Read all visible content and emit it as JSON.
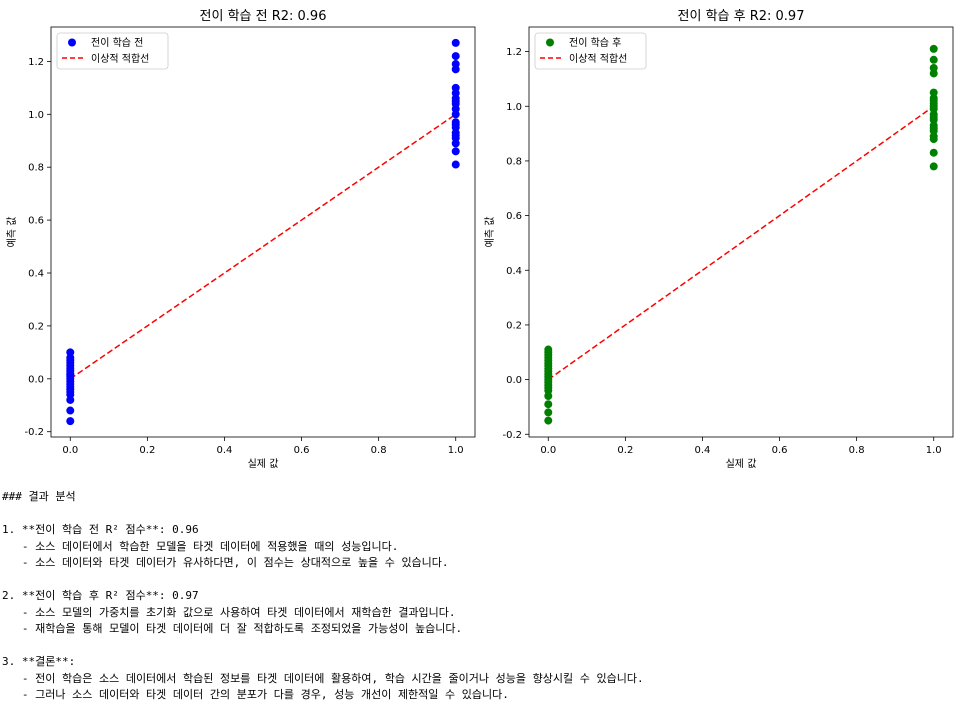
{
  "chart_data": [
    {
      "type": "scatter",
      "title": "전이 학습 전 R2: 0.96",
      "xlabel": "실제 값",
      "ylabel": "예측 값",
      "xlim": [
        -0.05,
        1.05
      ],
      "ylim": [
        -0.22,
        1.33
      ],
      "xticks": [
        0.0,
        0.2,
        0.4,
        0.6,
        0.8,
        1.0
      ],
      "xtick_labels": [
        "0.0",
        "0.2",
        "0.4",
        "0.6",
        "0.8",
        "1.0"
      ],
      "yticks": [
        -0.2,
        0.0,
        0.2,
        0.4,
        0.6,
        0.8,
        1.0,
        1.2
      ],
      "ytick_labels": [
        "-0.2",
        "0.0",
        "0.2",
        "0.4",
        "0.6",
        "0.8",
        "1.0",
        "1.2"
      ],
      "legend": {
        "position": "upper-left",
        "entries": [
          "전이 학습 전",
          "이상적 적합선"
        ]
      },
      "series": [
        {
          "name": "전이 학습 전",
          "kind": "scatter",
          "color": "#0000ff",
          "x": [
            0,
            0,
            0,
            0,
            0,
            0,
            0,
            0,
            0,
            0,
            0,
            0,
            0,
            0,
            0,
            0,
            0,
            0,
            0,
            0,
            1,
            1,
            1,
            1,
            1,
            1,
            1,
            1,
            1,
            1,
            1,
            1,
            1,
            1,
            1,
            1,
            1,
            1,
            1,
            1
          ],
          "y": [
            0.1,
            0.08,
            0.06,
            0.05,
            0.04,
            0.03,
            0.02,
            0.01,
            0.0,
            -0.01,
            -0.02,
            -0.03,
            -0.04,
            -0.06,
            -0.08,
            -0.12,
            -0.16,
            0.07,
            -0.05,
            0.015,
            1.27,
            1.22,
            1.19,
            1.17,
            1.1,
            1.08,
            1.05,
            1.04,
            1.02,
            0.97,
            0.96,
            0.93,
            0.91,
            0.89,
            0.86,
            0.81,
            1.0,
            0.95,
            1.06,
            0.92
          ]
        },
        {
          "name": "이상적 적합선",
          "kind": "line",
          "color": "#ff0000",
          "dash": "dashed",
          "x": [
            0,
            1
          ],
          "y": [
            0,
            1
          ]
        }
      ]
    },
    {
      "type": "scatter",
      "title": "전이 학습 후 R2: 0.97",
      "xlabel": "실제 값",
      "ylabel": "예측 값",
      "xlim": [
        -0.05,
        1.05
      ],
      "ylim": [
        -0.21,
        1.29
      ],
      "xticks": [
        0.0,
        0.2,
        0.4,
        0.6,
        0.8,
        1.0
      ],
      "xtick_labels": [
        "0.0",
        "0.2",
        "0.4",
        "0.6",
        "0.8",
        "1.0"
      ],
      "yticks": [
        -0.2,
        0.0,
        0.2,
        0.4,
        0.6,
        0.8,
        1.0,
        1.2
      ],
      "ytick_labels": [
        "-0.2",
        "0.0",
        "0.2",
        "0.4",
        "0.6",
        "0.8",
        "1.0",
        "1.2"
      ],
      "legend": {
        "position": "upper-left",
        "entries": [
          "전이 학습 후",
          "이상적 적합선"
        ]
      },
      "series": [
        {
          "name": "전이 학습 후",
          "kind": "scatter",
          "color": "#008000",
          "x": [
            0,
            0,
            0,
            0,
            0,
            0,
            0,
            0,
            0,
            0,
            0,
            0,
            0,
            0,
            0,
            0,
            0,
            0,
            0,
            0,
            1,
            1,
            1,
            1,
            1,
            1,
            1,
            1,
            1,
            1,
            1,
            1,
            1,
            1,
            1,
            1,
            1,
            1,
            1,
            1
          ],
          "y": [
            0.11,
            0.1,
            0.08,
            0.07,
            0.06,
            0.05,
            0.04,
            0.03,
            0.02,
            0.01,
            0.0,
            -0.01,
            -0.02,
            -0.04,
            -0.06,
            -0.09,
            -0.12,
            -0.15,
            0.09,
            -0.03,
            1.21,
            1.17,
            1.14,
            1.12,
            1.05,
            1.03,
            1.01,
            1.0,
            0.99,
            0.97,
            0.95,
            0.93,
            0.91,
            0.89,
            0.88,
            0.83,
            0.78,
            0.96,
            1.02,
            0.92
          ]
        },
        {
          "name": "이상적 적합선",
          "kind": "line",
          "color": "#ff0000",
          "dash": "dashed",
          "x": [
            0,
            1
          ],
          "y": [
            0,
            1
          ]
        }
      ]
    }
  ],
  "report": {
    "lines": [
      "### 결과 분석",
      "",
      "1. **전이 학습 전 R² 점수**: 0.96",
      "   - 소스 데이터에서 학습한 모델을 타겟 데이터에 적용했을 때의 성능입니다.",
      "   - 소스 데이터와 타겟 데이터가 유사하다면, 이 점수는 상대적으로 높을 수 있습니다.",
      "",
      "2. **전이 학습 후 R² 점수**: 0.97",
      "   - 소스 모델의 가중치를 초기화 값으로 사용하여 타겟 데이터에서 재학습한 결과입니다.",
      "   - 재학습을 통해 모델이 타겟 데이터에 더 잘 적합하도록 조정되었을 가능성이 높습니다.",
      "",
      "3. **결론**:",
      "   - 전이 학습은 소스 데이터에서 학습된 정보를 타겟 데이터에 활용하여, 학습 시간을 줄이거나 성능을 향상시킬 수 있습니다.",
      "   - 그러나 소스 데이터와 타겟 데이터 간의 분포가 다를 경우, 성능 개선이 제한적일 수 있습니다."
    ]
  }
}
